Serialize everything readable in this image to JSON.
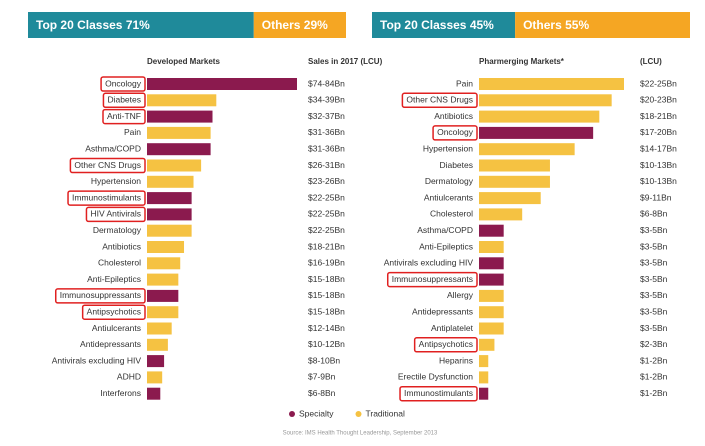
{
  "chart_data": [
    {
      "type": "bar",
      "orientation": "horizontal",
      "header": {
        "top": {
          "label": "Top 20 Classes 71%",
          "value": 71,
          "color": "#1f8a9a"
        },
        "others": {
          "label": "Others 29%",
          "value": 29,
          "color": "#f5a623"
        }
      },
      "category_title": "Developed Markets",
      "value_title": "Sales in 2017 (LCU)",
      "categories": [
        "Oncology",
        "Diabetes",
        "Anti-TNF",
        "Pain",
        "Asthma/COPD",
        "Other CNS Drugs",
        "Hypertension",
        "Immunostimulants",
        "HIV Antivirals",
        "Dermatology",
        "Antibiotics",
        "Cholesterol",
        "Anti-Epileptics",
        "Immunosuppressants",
        "Antipsychotics",
        "Antiulcerants",
        "Antidepressants",
        "Antivirals excluding HIV",
        "ADHD",
        "Interferons"
      ],
      "values": [
        79,
        36.5,
        34.5,
        33.5,
        33.5,
        28.5,
        24.5,
        23.5,
        23.5,
        23.5,
        19.5,
        17.5,
        16.5,
        16.5,
        16.5,
        13,
        11,
        9,
        8,
        7
      ],
      "value_labels": [
        "$74-84Bn",
        "$34-39Bn",
        "$32-37Bn",
        "$31-36Bn",
        "$31-36Bn",
        "$26-31Bn",
        "$23-26Bn",
        "$22-25Bn",
        "$22-25Bn",
        "$22-25Bn",
        "$18-21Bn",
        "$16-19Bn",
        "$15-18Bn",
        "$15-18Bn",
        "$15-18Bn",
        "$12-14Bn",
        "$10-12Bn",
        "$8-10Bn",
        "$7-9Bn",
        "$6-8Bn"
      ],
      "kinds": [
        0,
        1,
        0,
        1,
        0,
        1,
        1,
        0,
        0,
        1,
        1,
        1,
        1,
        0,
        1,
        1,
        1,
        0,
        1,
        0
      ],
      "highlight": [
        0,
        1,
        2,
        5,
        7,
        8,
        13,
        14
      ],
      "xlim": [
        0,
        79
      ]
    },
    {
      "type": "bar",
      "orientation": "horizontal",
      "header": {
        "top": {
          "label": "Top 20 Classes 45%",
          "value": 45,
          "color": "#1f8a9a"
        },
        "others": {
          "label": "Others 55%",
          "value": 55,
          "color": "#f5a623"
        }
      },
      "category_title": "Pharmerging Markets*",
      "value_title": "(LCU)",
      "categories": [
        "Pain",
        "Other CNS Drugs",
        "Antibiotics",
        "Oncology",
        "Hypertension",
        "Diabetes",
        "Dermatology",
        "Antiulcerants",
        "Cholesterol",
        "Asthma/COPD",
        "Anti-Epileptics",
        "Antivirals excluding HIV",
        "Immunosuppressants",
        "Allergy",
        "Antidepressants",
        "Antiplatelet",
        "Antipsychotics",
        "Heparins",
        "Erectile Dysfunction",
        "Immunostimulants"
      ],
      "values": [
        23.5,
        21.5,
        19.5,
        18.5,
        15.5,
        11.5,
        11.5,
        10,
        7,
        4,
        4,
        4,
        4,
        4,
        4,
        4,
        2.5,
        1.5,
        1.5,
        1.5
      ],
      "value_labels": [
        "$22-25Bn",
        "$20-23Bn",
        "$18-21Bn",
        "$17-20Bn",
        "$14-17Bn",
        "$10-13Bn",
        "$10-13Bn",
        "$9-11Bn",
        "$6-8Bn",
        "$3-5Bn",
        "$3-5Bn",
        "$3-5Bn",
        "$3-5Bn",
        "$3-5Bn",
        "$3-5Bn",
        "$3-5Bn",
        "$2-3Bn",
        "$1-2Bn",
        "$1-2Bn",
        "$1-2Bn"
      ],
      "kinds": [
        1,
        1,
        1,
        0,
        1,
        1,
        1,
        1,
        1,
        0,
        1,
        0,
        0,
        1,
        1,
        1,
        1,
        1,
        1,
        0
      ],
      "highlight": [
        1,
        3,
        12,
        16,
        19
      ],
      "xlim": [
        0,
        23.5
      ]
    }
  ],
  "legend": [
    {
      "name": "Specialty",
      "color": "#8b1a4e"
    },
    {
      "name": "Traditional",
      "color": "#f5c242"
    }
  ],
  "source": "Source: IMS Health Thought Leadership, September 2013"
}
